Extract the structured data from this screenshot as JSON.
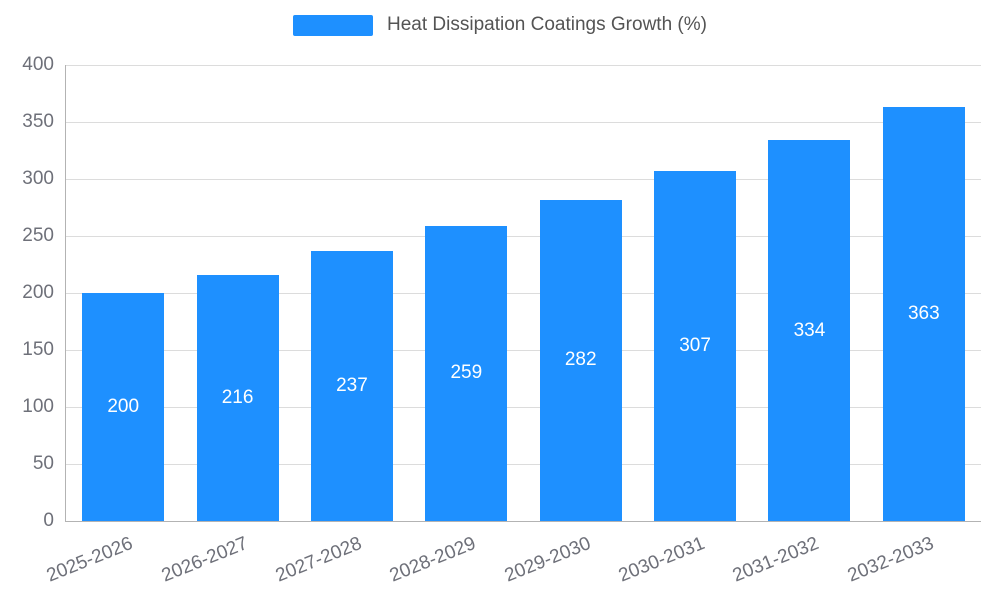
{
  "legend": {
    "label": "Heat Dissipation Coatings Growth (%)"
  },
  "colors": {
    "bar": "#1e90ff",
    "grid": "#dcdcdc",
    "axis": "#b3b3b3",
    "tick_text": "#6e7079",
    "legend_text": "#545454",
    "bar_label_text": "#ffffff"
  },
  "chart_data": {
    "type": "bar",
    "title": "Heat Dissipation Coatings Growth (%)",
    "categories": [
      "2025-2026",
      "2026-2027",
      "2027-2028",
      "2028-2029",
      "2029-2030",
      "2030-2031",
      "2031-2032",
      "2032-2033"
    ],
    "values": [
      200,
      216,
      237,
      259,
      282,
      307,
      334,
      363
    ],
    "xlabel": "",
    "ylabel": "",
    "ylim": [
      0,
      400
    ],
    "ytick_step": 50,
    "yticks": [
      0,
      50,
      100,
      150,
      200,
      250,
      300,
      350,
      400
    ],
    "grid": true,
    "legend_position": "top",
    "bar_value_labels_shown": true
  }
}
